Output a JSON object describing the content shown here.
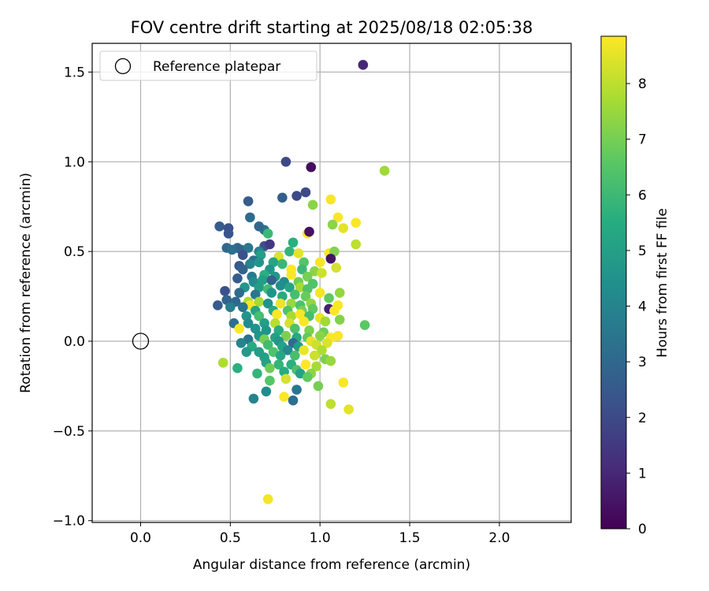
{
  "chart_data": {
    "type": "scatter",
    "title": "FOV centre drift starting at 2025/08/18 02:05:38",
    "xlabel": "Angular distance from reference (arcmin)",
    "ylabel": "Rotation from reference (arcmin)",
    "xlim": [
      -0.27,
      2.4
    ],
    "ylim": [
      -1.01,
      1.66
    ],
    "xticks": [
      0.0,
      0.5,
      1.0,
      1.5,
      2.0
    ],
    "xtick_labels": [
      "0.0",
      "0.5",
      "1.0",
      "1.5",
      "2.0"
    ],
    "yticks": [
      -1.0,
      -0.5,
      0.0,
      0.5,
      1.0,
      1.5
    ],
    "ytick_labels": [
      "−1.0",
      "−0.5",
      "0.0",
      "0.5",
      "1.0",
      "1.5"
    ],
    "grid": true,
    "legend": {
      "position": "top-left",
      "entries": [
        "Reference platepar"
      ]
    },
    "colorbar": {
      "label": "Hours from first FF file",
      "colormap": "viridis",
      "range": [
        0,
        8.85
      ],
      "ticks": [
        0,
        1,
        2,
        3,
        4,
        5,
        6,
        7,
        8
      ],
      "tick_labels": [
        "0",
        "1",
        "2",
        "3",
        "4",
        "5",
        "6",
        "7",
        "8"
      ]
    },
    "reference": {
      "x": 0.0,
      "y": 0.0
    },
    "points": [
      [
        1.24,
        1.54,
        1.0
      ],
      [
        0.81,
        1.0,
        2.0
      ],
      [
        0.95,
        0.97,
        0.3
      ],
      [
        1.36,
        0.95,
        7.6
      ],
      [
        0.92,
        0.83,
        2.0
      ],
      [
        0.87,
        0.81,
        2.0
      ],
      [
        0.79,
        0.8,
        2.7
      ],
      [
        1.06,
        0.79,
        8.8
      ],
      [
        0.6,
        0.78,
        2.6
      ],
      [
        0.96,
        0.76,
        7.3
      ],
      [
        1.1,
        0.69,
        8.8
      ],
      [
        0.61,
        0.69,
        3.1
      ],
      [
        1.2,
        0.66,
        8.8
      ],
      [
        1.07,
        0.65,
        7.3
      ],
      [
        1.13,
        0.63,
        8.5
      ],
      [
        0.44,
        0.64,
        2.6
      ],
      [
        0.49,
        0.63,
        2.3
      ],
      [
        0.69,
        0.62,
        3.4
      ],
      [
        0.66,
        0.64,
        3.0
      ],
      [
        0.93,
        0.6,
        8.8
      ],
      [
        0.49,
        0.6,
        2.4
      ],
      [
        0.71,
        0.6,
        6.0
      ],
      [
        0.94,
        0.61,
        0.4
      ],
      [
        0.85,
        0.55,
        5.6
      ],
      [
        1.2,
        0.54,
        8.0
      ],
      [
        0.54,
        0.52,
        3.0
      ],
      [
        0.48,
        0.52,
        3.0
      ],
      [
        0.51,
        0.51,
        3.2
      ],
      [
        0.56,
        0.51,
        2.9
      ],
      [
        0.6,
        0.52,
        3.5
      ],
      [
        0.69,
        0.53,
        2.2
      ],
      [
        0.72,
        0.54,
        1.5
      ],
      [
        0.66,
        0.5,
        4.0
      ],
      [
        0.83,
        0.5,
        5.8
      ],
      [
        0.88,
        0.49,
        8.5
      ],
      [
        1.05,
        0.49,
        8.8
      ],
      [
        1.08,
        0.5,
        7.2
      ],
      [
        0.57,
        0.48,
        2.2
      ],
      [
        0.67,
        0.48,
        5.0
      ],
      [
        0.77,
        0.47,
        8.4
      ],
      [
        1.06,
        0.46,
        0.5
      ],
      [
        0.63,
        0.45,
        3.2
      ],
      [
        0.74,
        0.44,
        5.2
      ],
      [
        0.79,
        0.43,
        5.9
      ],
      [
        1.0,
        0.44,
        8.7
      ],
      [
        0.55,
        0.42,
        2.5
      ],
      [
        0.61,
        0.43,
        4.0
      ],
      [
        0.66,
        0.44,
        4.6
      ],
      [
        0.91,
        0.44,
        6.5
      ],
      [
        1.09,
        0.41,
        8.3
      ],
      [
        0.57,
        0.4,
        2.8
      ],
      [
        0.72,
        0.4,
        4.6
      ],
      [
        0.84,
        0.4,
        8.9
      ],
      [
        0.9,
        0.4,
        6.0
      ],
      [
        0.97,
        0.39,
        7.3
      ],
      [
        1.01,
        0.38,
        8.2
      ],
      [
        0.62,
        0.36,
        3.6
      ],
      [
        0.69,
        0.37,
        5.6
      ],
      [
        0.75,
        0.36,
        4.7
      ],
      [
        0.84,
        0.37,
        8.8
      ],
      [
        0.93,
        0.36,
        7.0
      ],
      [
        0.54,
        0.35,
        2.6
      ],
      [
        0.63,
        0.33,
        4.3
      ],
      [
        0.68,
        0.34,
        5.0
      ],
      [
        0.73,
        0.34,
        2.8
      ],
      [
        0.8,
        0.33,
        4.3
      ],
      [
        0.88,
        0.33,
        6.9
      ],
      [
        0.96,
        0.32,
        6.4
      ],
      [
        0.58,
        0.3,
        4.7
      ],
      [
        0.66,
        0.3,
        4.9
      ],
      [
        0.71,
        0.29,
        6.1
      ],
      [
        0.78,
        0.31,
        4.4
      ],
      [
        0.83,
        0.3,
        5.2
      ],
      [
        0.89,
        0.3,
        7.7
      ],
      [
        0.93,
        0.29,
        6.4
      ],
      [
        1.0,
        0.27,
        8.7
      ],
      [
        1.11,
        0.27,
        7.4
      ],
      [
        0.47,
        0.28,
        2.2
      ],
      [
        0.55,
        0.27,
        3.1
      ],
      [
        0.64,
        0.26,
        3.5
      ],
      [
        0.73,
        0.27,
        4.6
      ],
      [
        0.79,
        0.25,
        5.5
      ],
      [
        0.86,
        0.26,
        6.2
      ],
      [
        0.92,
        0.25,
        6.8
      ],
      [
        1.05,
        0.24,
        6.7
      ],
      [
        0.48,
        0.23,
        2.8
      ],
      [
        0.53,
        0.22,
        3.0
      ],
      [
        0.6,
        0.22,
        7.8
      ],
      [
        0.61,
        0.2,
        8.8
      ],
      [
        0.66,
        0.22,
        7.7
      ],
      [
        0.71,
        0.21,
        4.5
      ],
      [
        0.78,
        0.21,
        8.6
      ],
      [
        0.84,
        0.21,
        7.5
      ],
      [
        0.89,
        0.2,
        6.3
      ],
      [
        0.95,
        0.21,
        7.4
      ],
      [
        1.1,
        0.2,
        8.8
      ],
      [
        0.43,
        0.2,
        2.6
      ],
      [
        0.5,
        0.19,
        3.8
      ],
      [
        0.57,
        0.19,
        3.4
      ],
      [
        0.64,
        0.17,
        5.2
      ],
      [
        0.74,
        0.17,
        5.4
      ],
      [
        0.82,
        0.17,
        6.4
      ],
      [
        0.9,
        0.17,
        7.0
      ],
      [
        0.96,
        0.18,
        6.7
      ],
      [
        1.05,
        0.18,
        0.8
      ],
      [
        1.08,
        0.17,
        8.8
      ],
      [
        0.59,
        0.14,
        4.6
      ],
      [
        0.66,
        0.14,
        6.2
      ],
      [
        0.76,
        0.15,
        8.8
      ],
      [
        0.84,
        0.14,
        7.7
      ],
      [
        0.89,
        0.15,
        8.8
      ],
      [
        0.94,
        0.14,
        6.2
      ],
      [
        1.0,
        0.13,
        8.6
      ],
      [
        0.52,
        0.1,
        3.3
      ],
      [
        0.6,
        0.1,
        4.3
      ],
      [
        0.69,
        0.1,
        5.0
      ],
      [
        0.75,
        0.1,
        7.9
      ],
      [
        0.83,
        0.1,
        8.3
      ],
      [
        0.91,
        0.11,
        8.8
      ],
      [
        1.03,
        0.11,
        7.6
      ],
      [
        1.11,
        0.12,
        7.2
      ],
      [
        1.25,
        0.09,
        6.6
      ],
      [
        0.55,
        0.07,
        8.8
      ],
      [
        0.64,
        0.07,
        4.5
      ],
      [
        0.7,
        0.06,
        4.6
      ],
      [
        0.77,
        0.06,
        5.5
      ],
      [
        0.86,
        0.07,
        6.3
      ],
      [
        0.94,
        0.06,
        7.1
      ],
      [
        1.02,
        0.05,
        6.9
      ],
      [
        0.66,
        0.03,
        4.6
      ],
      [
        0.75,
        0.02,
        5.1
      ],
      [
        0.81,
        0.03,
        7.1
      ],
      [
        0.87,
        0.02,
        5.4
      ],
      [
        0.93,
        0.02,
        6.7
      ],
      [
        1.0,
        0.03,
        7.3
      ],
      [
        1.06,
        0.02,
        8.8
      ],
      [
        1.1,
        0.03,
        8.8
      ],
      [
        0.6,
        0.01,
        3.4
      ],
      [
        0.69,
        0.01,
        7.0
      ],
      [
        0.77,
        0.0,
        4.7
      ],
      [
        0.85,
        -0.01,
        3.1
      ],
      [
        0.95,
        0.0,
        8.5
      ],
      [
        1.04,
        -0.01,
        8.4
      ],
      [
        0.56,
        -0.01,
        4.0
      ],
      [
        0.62,
        -0.03,
        5.4
      ],
      [
        0.71,
        -0.02,
        6.1
      ],
      [
        0.79,
        -0.03,
        5.2
      ],
      [
        0.88,
        -0.03,
        4.9
      ],
      [
        0.98,
        -0.02,
        8.2
      ],
      [
        0.59,
        -0.06,
        4.8
      ],
      [
        0.66,
        -0.06,
        4.9
      ],
      [
        0.74,
        -0.06,
        6.4
      ],
      [
        0.82,
        -0.05,
        4.2
      ],
      [
        0.91,
        -0.05,
        8.6
      ],
      [
        1.01,
        -0.05,
        7.8
      ],
      [
        0.69,
        -0.09,
        5.0
      ],
      [
        0.78,
        -0.08,
        5.3
      ],
      [
        0.86,
        -0.08,
        6.2
      ],
      [
        0.97,
        -0.08,
        8.2
      ],
      [
        1.03,
        -0.1,
        7.1
      ],
      [
        1.06,
        -0.11,
        7.5
      ],
      [
        0.46,
        -0.12,
        7.8
      ],
      [
        0.7,
        -0.12,
        5.1
      ],
      [
        0.77,
        -0.13,
        5.8
      ],
      [
        0.84,
        -0.13,
        5.6
      ],
      [
        0.92,
        -0.13,
        8.9
      ],
      [
        0.98,
        -0.14,
        7.7
      ],
      [
        0.54,
        -0.15,
        5.6
      ],
      [
        0.72,
        -0.15,
        6.9
      ],
      [
        0.87,
        -0.16,
        6.3
      ],
      [
        0.65,
        -0.18,
        5.8
      ],
      [
        0.8,
        -0.17,
        5.5
      ],
      [
        0.89,
        -0.18,
        5.1
      ],
      [
        0.95,
        -0.18,
        7.3
      ],
      [
        0.72,
        -0.22,
        6.5
      ],
      [
        0.81,
        -0.21,
        8.3
      ],
      [
        0.93,
        -0.2,
        6.7
      ],
      [
        1.13,
        -0.23,
        8.8
      ],
      [
        0.87,
        -0.27,
        3.5
      ],
      [
        0.7,
        -0.28,
        4.3
      ],
      [
        0.99,
        -0.25,
        7.0
      ],
      [
        0.63,
        -0.32,
        4.0
      ],
      [
        0.8,
        -0.31,
        8.8
      ],
      [
        0.85,
        -0.33,
        3.2
      ],
      [
        1.06,
        -0.35,
        8.0
      ],
      [
        1.16,
        -0.38,
        8.5
      ],
      [
        0.71,
        -0.88,
        8.7
      ]
    ]
  }
}
